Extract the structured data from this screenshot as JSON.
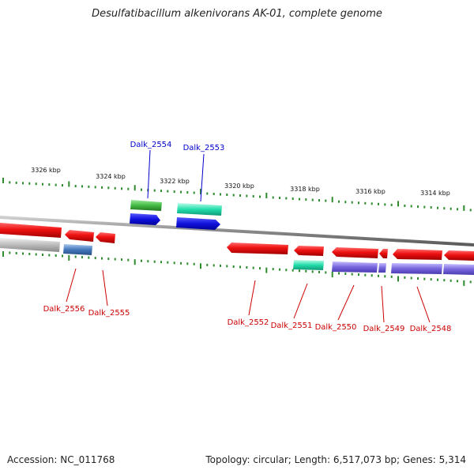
{
  "title": "Desulfatibacillum alkenivorans AK-01, complete genome",
  "footer": {
    "accession": "Accession: NC_011768",
    "summary": "Topology: circular; Length: 6,517,073 bp; Genes: 5,314"
  },
  "colors": {
    "backbone": "#8a8a8a",
    "tick": "#2e8b2e",
    "forward_label": "#0000cc",
    "reverse_label": "#cc0000",
    "red_gene": "#ee1111",
    "blue_gene": "#1111dd",
    "green_gene": "#44bb44",
    "teal_gene": "#22ddaa",
    "purple_gene": "#7766dd",
    "steelblue_gene": "#4477bb",
    "gray_gene": "#bbbbbb"
  },
  "scale_labels": [
    "3326 kbp",
    "3324 kbp",
    "3322 kbp",
    "3320 kbp",
    "3318 kbp",
    "3316 kbp",
    "3314 kbp"
  ],
  "gene_labels": {
    "forward": [
      "Dalk_2554",
      "Dalk_2553"
    ],
    "reverse": [
      "Dalk_2556",
      "Dalk_2555",
      "Dalk_2552",
      "Dalk_2551",
      "Dalk_2550",
      "Dalk_2549",
      "Dalk_2548"
    ]
  }
}
